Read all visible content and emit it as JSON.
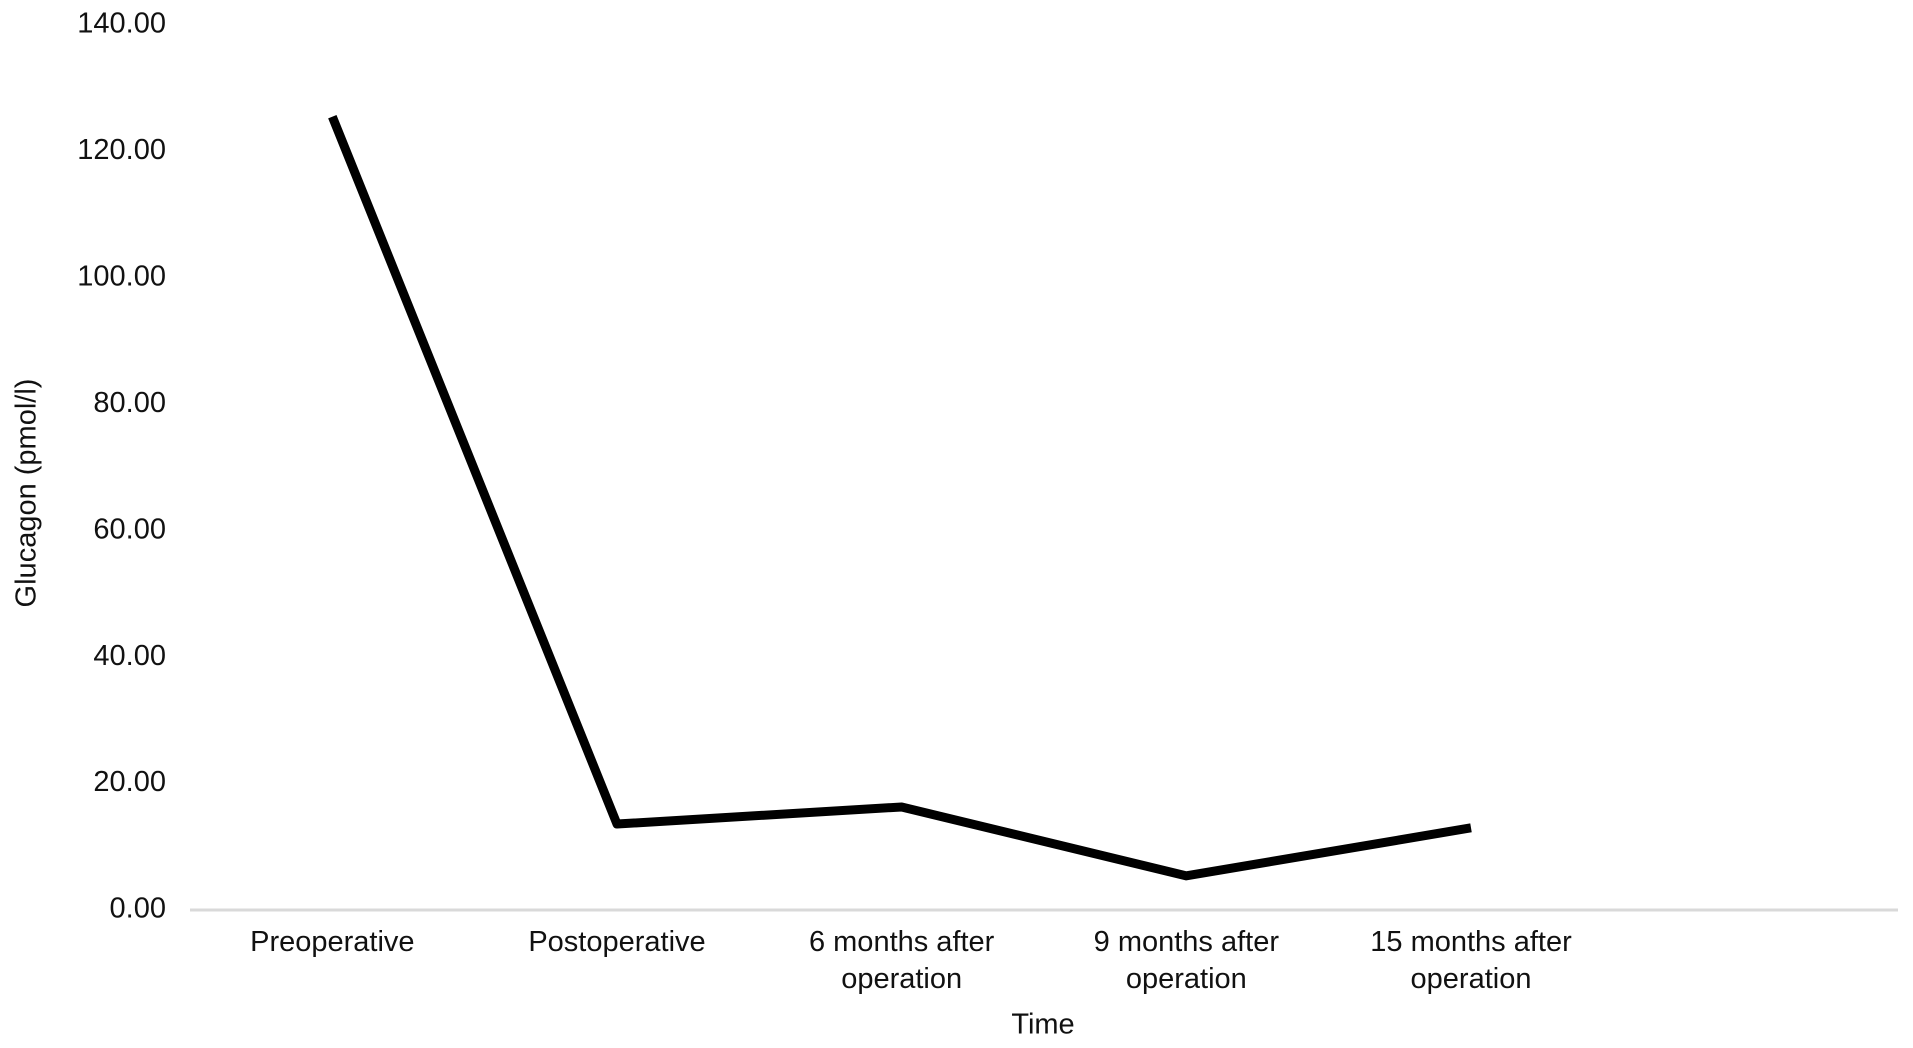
{
  "chart_data": {
    "type": "line",
    "y_label": "Glucagon (pmol/l)",
    "x_label": "Time",
    "categories": [
      "Preoperative",
      "Postoperative",
      "6 months after operation",
      "9 months after operation",
      "15 months after operation",
      null
    ],
    "values": [
      125.5,
      13.6,
      16.3,
      5.4,
      13.0,
      null
    ],
    "color": "#000000",
    "ylim": [
      0,
      140
    ],
    "yticks": [
      {
        "value": 0,
        "label": "0.00"
      },
      {
        "value": 20,
        "label": "20.00"
      },
      {
        "value": 40,
        "label": "40.00"
      },
      {
        "value": 60,
        "label": "60.00"
      },
      {
        "value": 80,
        "label": "80.00"
      },
      {
        "value": 100,
        "label": "100.00"
      },
      {
        "value": 120,
        "label": "120.00"
      },
      {
        "value": 140,
        "label": "140.00"
      }
    ],
    "grid": false
  }
}
